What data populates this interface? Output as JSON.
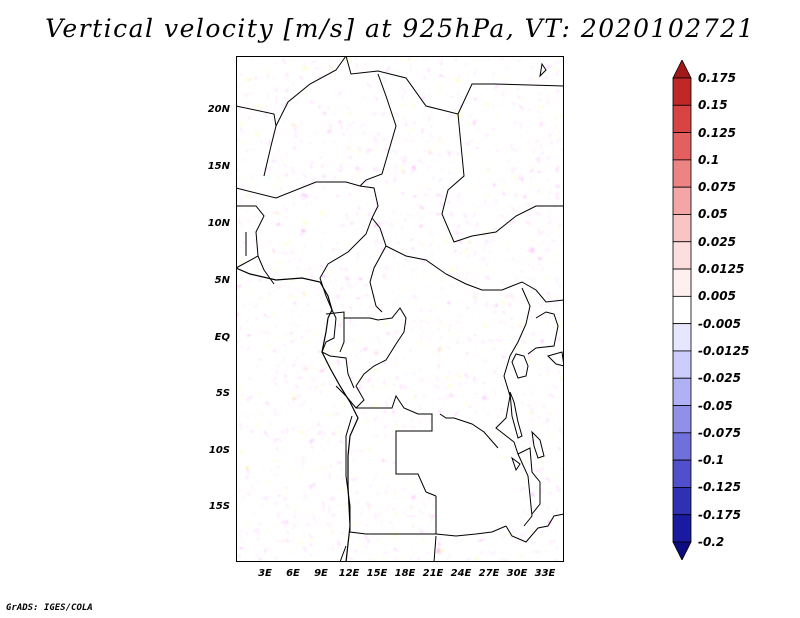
{
  "title": "Vertical velocity [m/s] at 925hPa, VT: 2020102721",
  "y_labels": [
    "20N",
    "15N",
    "10N",
    "5N",
    "EQ",
    "5S",
    "10S",
    "15S"
  ],
  "x_labels": [
    "3E",
    "6E",
    "9E",
    "12E",
    "15E",
    "18E",
    "21E",
    "24E",
    "27E",
    "30E",
    "33E"
  ],
  "colorbar": {
    "labels": [
      "0.175",
      "0.15",
      "0.125",
      "0.1",
      "0.075",
      "0.05",
      "0.025",
      "0.0125",
      "0.005",
      "-0.005",
      "-0.0125",
      "-0.025",
      "-0.05",
      "-0.075",
      "-0.1",
      "-0.125",
      "-0.175",
      "-0.2"
    ],
    "colors": [
      "#a01818",
      "#c02828",
      "#d84444",
      "#e46060",
      "#ec8484",
      "#f4a6a6",
      "#f8c4c4",
      "#fcdede",
      "#fff0f0",
      "#ffffff",
      "#e6e6ff",
      "#ccccff",
      "#b0b0f4",
      "#9090e8",
      "#7070dc",
      "#5050cc",
      "#3030b4",
      "#1a1aa0",
      "#0c0c80"
    ]
  },
  "credit": "GrADS: IGES/COLA",
  "colors": {
    "positive": "#e86a6a",
    "negative": "#7070e0",
    "border": "#000000"
  }
}
